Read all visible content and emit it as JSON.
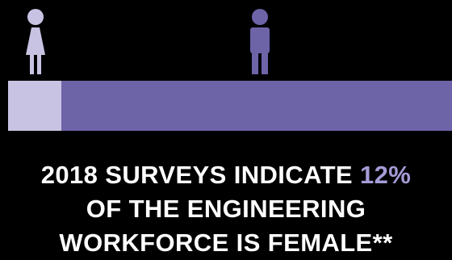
{
  "colors": {
    "background": "#000000",
    "female": "#c9c3e3",
    "male": "#6d64a8",
    "text": "#ffffff",
    "highlight": "#a49cd6"
  },
  "icons": {
    "female": "female-person-icon",
    "male": "male-person-icon"
  },
  "chart_data": {
    "type": "bar",
    "orientation": "horizontal-stacked",
    "categories": [
      "Female",
      "Male"
    ],
    "values": [
      12,
      88
    ],
    "unit": "%",
    "xlim": [
      0,
      100
    ],
    "grid": false,
    "title": ""
  },
  "headline": {
    "line1_prefix": "2018 SURVEYS INDICATE ",
    "line1_highlight": "12%",
    "line2": "OF THE ENGINEERING",
    "line3": "WORKFORCE IS FEMALE**"
  }
}
